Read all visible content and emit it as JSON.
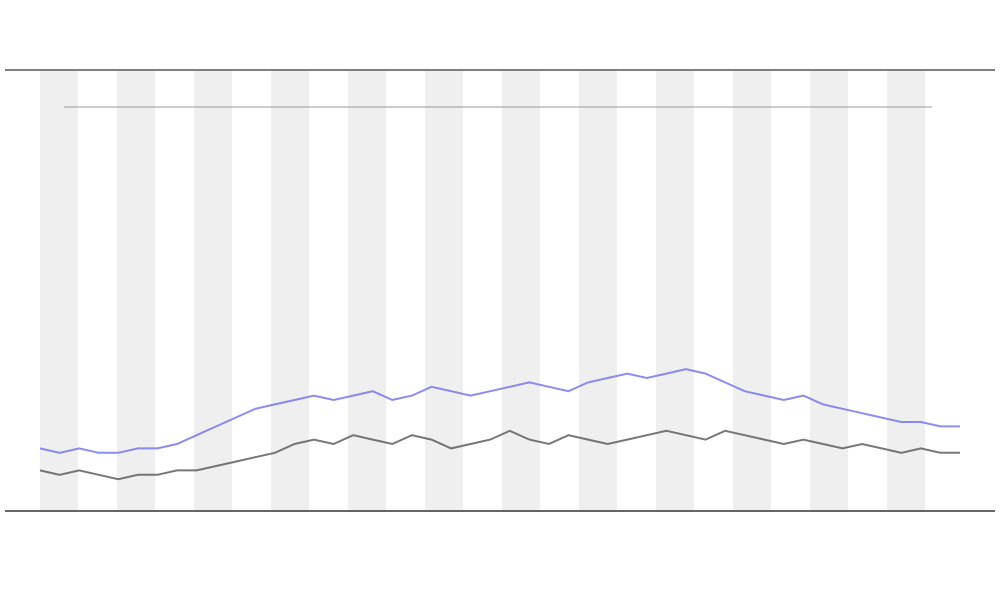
{
  "chart_data": {
    "type": "line",
    "x": [
      0,
      1,
      2,
      3,
      4,
      5,
      6,
      7,
      8,
      9,
      10,
      11,
      12,
      13,
      14,
      15,
      16,
      17,
      18,
      19,
      20,
      21,
      22,
      23,
      24,
      25,
      26,
      27,
      28,
      29,
      30,
      31,
      32,
      33,
      34,
      35,
      36,
      37,
      38,
      39,
      40,
      41,
      42,
      43,
      44,
      45,
      46,
      47
    ],
    "xlim": [
      0,
      47
    ],
    "ylim": [
      0,
      100
    ],
    "series": [
      {
        "color": "#555555",
        "values": [
          9,
          8,
          9,
          8,
          7,
          8,
          8,
          9,
          9,
          10,
          11,
          12,
          13,
          15,
          16,
          15,
          17,
          16,
          15,
          17,
          16,
          14,
          15,
          16,
          18,
          16,
          15,
          17,
          16,
          15,
          16,
          17,
          18,
          17,
          16,
          18,
          17,
          16,
          15,
          16,
          15,
          14,
          15,
          14,
          13,
          14,
          13,
          13
        ]
      },
      {
        "color": "#6f6fe8",
        "values": [
          14,
          13,
          14,
          13,
          13,
          14,
          14,
          15,
          17,
          19,
          21,
          23,
          24,
          25,
          26,
          25,
          26,
          27,
          25,
          26,
          28,
          27,
          26,
          27,
          28,
          29,
          28,
          27,
          29,
          30,
          31,
          30,
          31,
          32,
          31,
          29,
          27,
          26,
          25,
          26,
          24,
          23,
          22,
          21,
          20,
          20,
          19,
          19
        ]
      }
    ]
  }
}
